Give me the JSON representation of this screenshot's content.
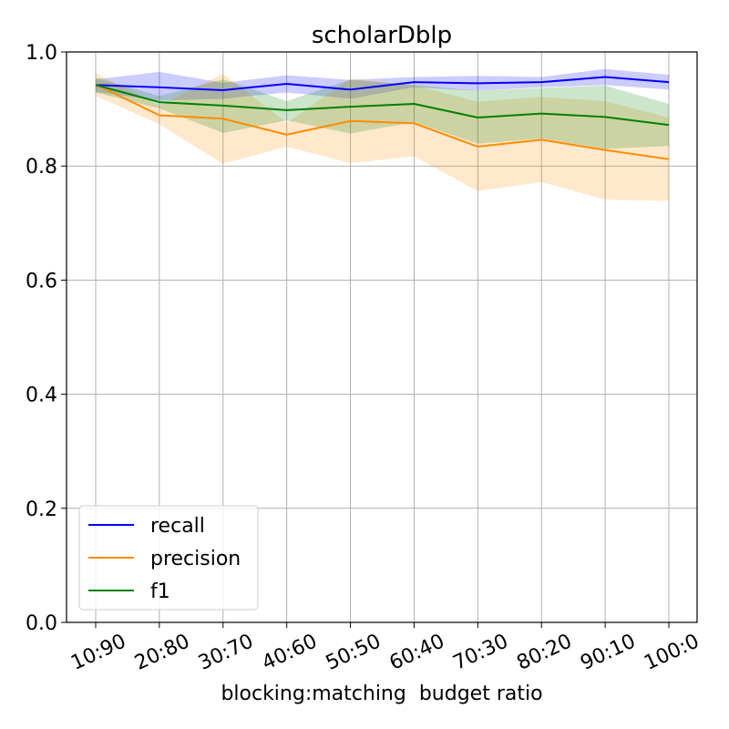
{
  "chart_data": {
    "type": "line",
    "title": "scholarDblp",
    "xlabel": "blocking:matching  budget ratio",
    "ylabel": "",
    "categories": [
      "10:90",
      "20:80",
      "30:70",
      "40:60",
      "50:50",
      "60:40",
      "70:30",
      "80:20",
      "90:10",
      "100:0"
    ],
    "ylim": [
      0.0,
      1.0
    ],
    "yticks": [
      "0.0",
      "0.2",
      "0.4",
      "0.6",
      "0.8",
      "1.0"
    ],
    "grid": true,
    "legend_position": "lower-left",
    "series": [
      {
        "name": "recall",
        "color": "#0000ff",
        "values": [
          0.942,
          0.938,
          0.933,
          0.944,
          0.934,
          0.947,
          0.945,
          0.947,
          0.956,
          0.947
        ],
        "upper": [
          0.952,
          0.965,
          0.946,
          0.959,
          0.951,
          0.956,
          0.958,
          0.956,
          0.97,
          0.96
        ],
        "lower": [
          0.93,
          0.915,
          0.918,
          0.929,
          0.918,
          0.938,
          0.932,
          0.938,
          0.942,
          0.934
        ]
      },
      {
        "name": "precision",
        "color": "#ff8c00",
        "values": [
          0.943,
          0.889,
          0.883,
          0.855,
          0.879,
          0.875,
          0.834,
          0.846,
          0.828,
          0.812
        ],
        "upper": [
          0.963,
          0.906,
          0.962,
          0.876,
          0.953,
          0.941,
          0.913,
          0.921,
          0.914,
          0.885
        ],
        "lower": [
          0.923,
          0.873,
          0.804,
          0.834,
          0.805,
          0.817,
          0.756,
          0.772,
          0.741,
          0.739
        ]
      },
      {
        "name": "f1",
        "color": "#008000",
        "values": [
          0.942,
          0.912,
          0.906,
          0.898,
          0.904,
          0.909,
          0.885,
          0.892,
          0.886,
          0.872
        ],
        "upper": [
          0.955,
          0.923,
          0.952,
          0.914,
          0.951,
          0.942,
          0.932,
          0.937,
          0.941,
          0.909
        ],
        "lower": [
          0.929,
          0.901,
          0.858,
          0.88,
          0.857,
          0.877,
          0.839,
          0.848,
          0.83,
          0.835
        ]
      }
    ]
  }
}
